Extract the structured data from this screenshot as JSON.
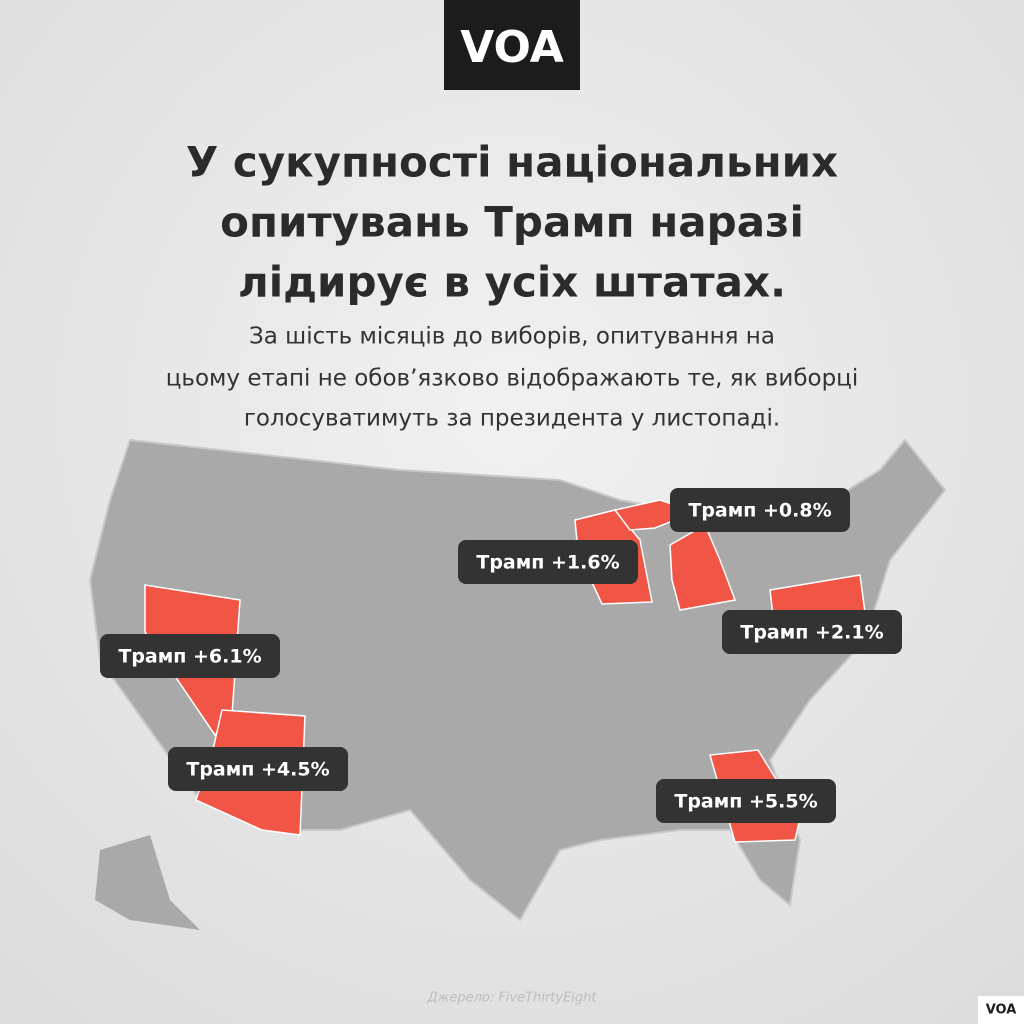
{
  "logo": "VOA",
  "title": [
    "У сукупності національних",
    "опитувань Трамп наразі",
    "лідирує в усіх штатах."
  ],
  "subtitle": [
    "За шість місяців до виборів, опитування на",
    "цьому етапі не обов’язково відображають те, як виборці",
    "голосуватимуть за президента у листопаді."
  ],
  "labels": [
    "Трамп +0.8%",
    "Трамп +1.6%",
    "Трамп +2.1%",
    "Трамп +6.1%",
    "Трамп +4.5%",
    "Трамп +5.5%"
  ],
  "source": "Джерело: FiveThirtyEight",
  "corner_logo": "VOA"
}
